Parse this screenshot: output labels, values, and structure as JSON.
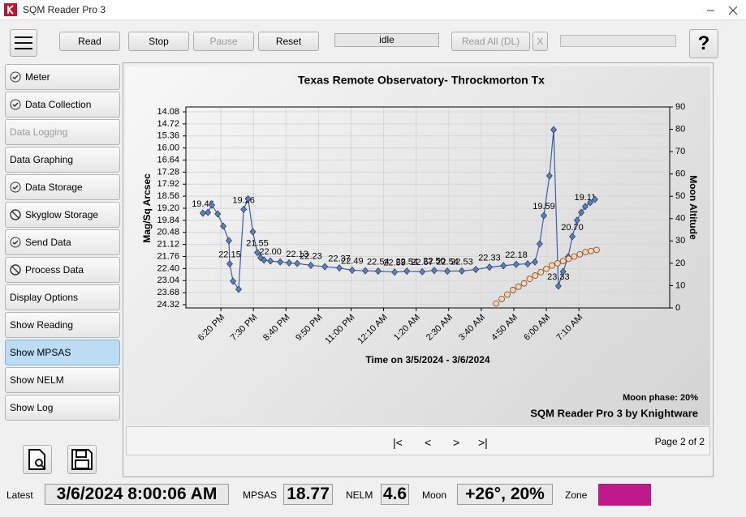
{
  "window": {
    "title": "SQM Reader Pro 3"
  },
  "toolbar": {
    "buttons": [
      "Read",
      "Stop",
      "Pause",
      "Reset"
    ],
    "state": "idle",
    "read_all": "Read All (DL)",
    "cancel": "X",
    "help": "?"
  },
  "sidebar": [
    "Meter",
    "Data Collection",
    "Data Logging",
    "Data Graphing",
    "Data Storage",
    "Skyglow Storage",
    "Send Data",
    "Process Data",
    "Display Options",
    "Show Reading",
    "Show MPSAS",
    "Show NELM",
    "Show Log"
  ],
  "chart_data": {
    "type": "line",
    "title": "Texas Remote Observatory- Throckmorton Tx",
    "x_label": "Time on 3/5/2024 - 3/6/2024",
    "y_label": "Mag/Sq Arcsec",
    "y2_label": "Moon Altitude",
    "moon_phase": "Moon phase: 20%",
    "credit": "SQM Reader Pro 3 by Knightware",
    "grid": true,
    "xlim": [
      17.08,
      34.42
    ],
    "xticks": [
      {
        "value": 18.3333,
        "label": "6:20 PM"
      },
      {
        "value": 19.5,
        "label": "7:30 PM"
      },
      {
        "value": 20.6667,
        "label": "8:40 PM"
      },
      {
        "value": 21.8333,
        "label": "9:50 PM"
      },
      {
        "value": 23,
        "label": "11:00 PM"
      },
      {
        "value": 24.1667,
        "label": "12:10 AM"
      },
      {
        "value": 25.3333,
        "label": "1:20 AM"
      },
      {
        "value": 26.5,
        "label": "2:30 AM"
      },
      {
        "value": 27.6667,
        "label": "3:40 AM"
      },
      {
        "value": 28.8333,
        "label": "4:50 AM"
      },
      {
        "value": 30,
        "label": "6:00 AM"
      },
      {
        "value": 31.1667,
        "label": "7:10 AM"
      }
    ],
    "ylim": [
      24.32,
      14.08
    ],
    "yticks": [
      14.08,
      14.72,
      15.36,
      {
        "value": 16,
        "label": "16.00"
      },
      16.64,
      17.28,
      17.92,
      18.56,
      {
        "value": 19.2,
        "label": "19.20"
      },
      19.84,
      20.48,
      21.12,
      21.76,
      {
        "value": 22.4,
        "label": "22.40"
      },
      23.04,
      23.68,
      24.32
    ],
    "y2lim": [
      0,
      90
    ],
    "y2ticks": [
      0,
      10,
      20,
      30,
      40,
      50,
      60,
      70,
      80,
      90
    ],
    "series": [
      {
        "color": "#3d5f9e",
        "x": [
          17.69,
          17.87,
          18.01,
          18.22,
          18.42,
          18.62,
          18.65,
          18.77,
          18.97,
          19.15,
          19.31,
          19.48,
          19.64,
          19.76,
          19.88,
          20.11,
          20.46,
          20.78,
          21.07,
          21.56,
          22.06,
          22.58,
          23.04,
          23.51,
          23.97,
          24.56,
          25.0,
          25.55,
          25.98,
          26.45,
          26.97,
          27.47,
          27.96,
          28.46,
          28.92,
          29.33,
          29.59,
          29.76,
          29.91,
          30.11,
          30.26,
          30.43,
          30.6,
          30.78,
          30.93,
          31.1,
          31.25,
          31.39,
          31.57,
          31.74
        ],
        "values": [
          19.46,
          19.42,
          19.03,
          19.5,
          20.15,
          20.92,
          22.15,
          23.07,
          23.5,
          19.26,
          18.7,
          20.45,
          21.55,
          21.83,
          21.95,
          22.0,
          22.05,
          22.1,
          22.13,
          22.23,
          22.3,
          22.37,
          22.49,
          22.52,
          22.54,
          22.59,
          22.54,
          22.57,
          22.5,
          22.54,
          22.53,
          22.45,
          22.33,
          22.25,
          22.18,
          22.15,
          22.05,
          21.09,
          19.59,
          17.48,
          15.03,
          23.33,
          22.56,
          21.78,
          20.7,
          19.84,
          19.42,
          19.11,
          18.9,
          18.73
        ],
        "value_labels": [
          "19.46",
          null,
          null,
          null,
          null,
          null,
          "22.15",
          null,
          null,
          "19.26",
          null,
          null,
          "21.55",
          null,
          null,
          "22.00",
          null,
          null,
          "22.13",
          "22.23",
          null,
          "22.37",
          "22.49",
          null,
          "22.54",
          "22.59",
          "22.54",
          "22.57",
          "22.50",
          "22.54",
          "22.53",
          null,
          "22.33",
          null,
          "22.18",
          null,
          null,
          null,
          "19.59",
          null,
          null,
          "23.33",
          null,
          null,
          "20.70",
          null,
          null,
          "19.11",
          null,
          null
        ]
      },
      {
        "color": "#f9d2b2",
        "axis": "y2",
        "x": [
          28.2,
          28.4,
          28.6,
          28.8,
          29.0,
          29.2,
          29.4,
          29.6,
          29.8,
          30.0,
          30.2,
          30.4,
          30.6,
          30.8,
          31.0,
          31.2,
          31.4,
          31.6,
          31.8
        ],
        "values": [
          2,
          4,
          6,
          8,
          9.5,
          11,
          13,
          14.5,
          16,
          17.5,
          19,
          20,
          21,
          22,
          23,
          24,
          25,
          25.5,
          26
        ]
      }
    ]
  },
  "pager": {
    "buttons": [
      "|<",
      "<",
      ">",
      ">|"
    ],
    "page": "Page 2 of 2"
  },
  "status": {
    "latest_label": "Latest",
    "latest": "3/6/2024 8:00:06 AM",
    "mpsas_label": "MPSAS",
    "mpsas": "18.77",
    "nelm_label": "NELM",
    "nelm": "4.6",
    "moon_label": "Moon",
    "moon": "+26°, 20%",
    "zone_label": "Zone",
    "zone_color": "#c0198a"
  }
}
